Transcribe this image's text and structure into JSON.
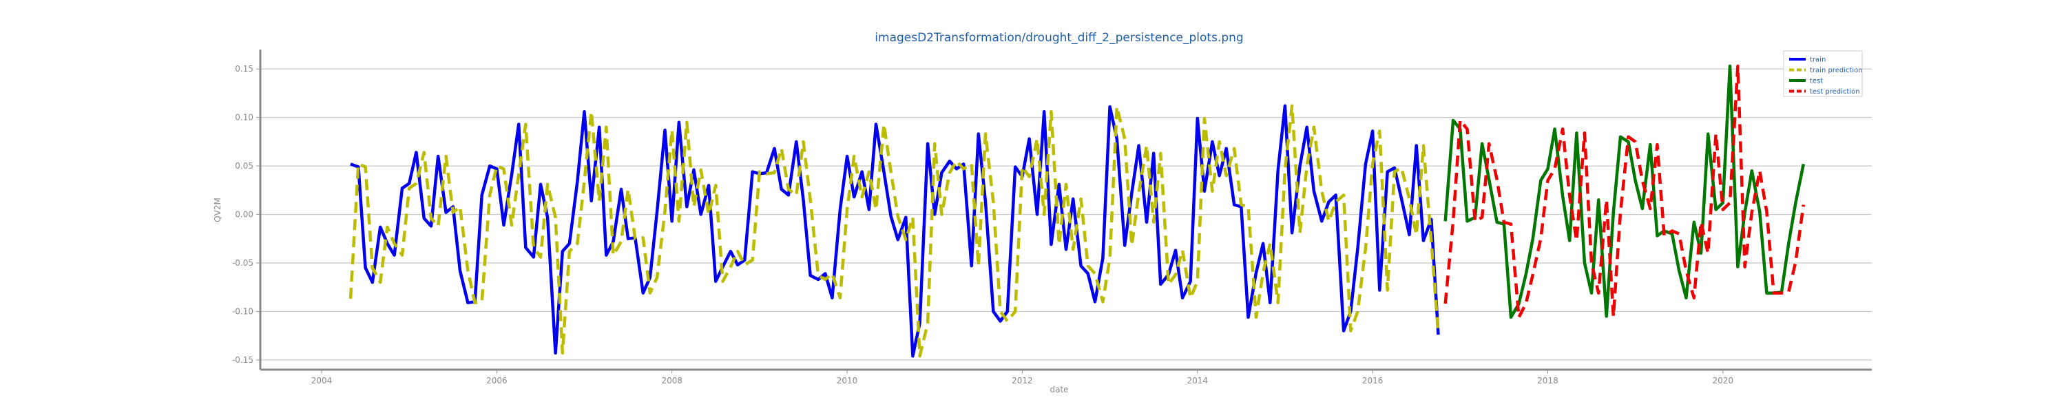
{
  "chart_data": {
    "type": "line",
    "title": "imagesD2Transformation/drought_diff_2_persistence_plots.png",
    "xlabel": "date",
    "ylabel": "QV2M",
    "xlim": [
      2003.3,
      2021.7
    ],
    "ylim": [
      -0.16,
      0.17
    ],
    "xticks": [
      "2004",
      "2006",
      "2008",
      "2010",
      "2012",
      "2014",
      "2016",
      "2018",
      "2020"
    ],
    "yticks": [
      "0.15",
      "0.10",
      "0.05",
      "0.00",
      "-0.05",
      "-0.10",
      "-0.15"
    ],
    "grid": "horizontal",
    "legend_position": "top-right",
    "series": [
      {
        "name": "train",
        "color": "#0000ee",
        "style": "solid",
        "x": [
          2004.33,
          2004.42,
          2004.5,
          2004.58,
          2004.67,
          2004.75,
          2004.83,
          2004.92,
          2005.0,
          2005.08,
          2005.17,
          2005.25,
          2005.33,
          2005.42,
          2005.5,
          2005.58,
          2005.67,
          2005.75,
          2005.83,
          2005.92,
          2006.0,
          2006.08,
          2006.17,
          2006.25,
          2006.33,
          2006.42,
          2006.5,
          2006.58,
          2006.67,
          2006.75,
          2006.83,
          2006.92,
          2007.0,
          2007.08,
          2007.17,
          2007.25,
          2007.33,
          2007.42,
          2007.5,
          2007.58,
          2007.67,
          2007.75,
          2007.83,
          2007.92,
          2008.0,
          2008.08,
          2008.17,
          2008.25,
          2008.33,
          2008.42,
          2008.5,
          2008.58,
          2008.67,
          2008.75,
          2008.83,
          2008.92,
          2009.0,
          2009.08,
          2009.17,
          2009.25,
          2009.33,
          2009.42,
          2009.5,
          2009.58,
          2009.67,
          2009.75,
          2009.83,
          2009.92,
          2010.0,
          2010.08,
          2010.17,
          2010.25,
          2010.33,
          2010.42,
          2010.5,
          2010.58,
          2010.67,
          2010.75,
          2010.83,
          2010.92,
          2011.0,
          2011.08,
          2011.17,
          2011.25,
          2011.33,
          2011.42,
          2011.5,
          2011.58,
          2011.67,
          2011.75,
          2011.83,
          2011.92,
          2012.0,
          2012.08,
          2012.17,
          2012.25,
          2012.33,
          2012.42,
          2012.5,
          2012.58,
          2012.67,
          2012.75,
          2012.83,
          2012.92,
          2013.0,
          2013.08,
          2013.17,
          2013.25,
          2013.33,
          2013.42,
          2013.5,
          2013.58,
          2013.67,
          2013.75,
          2013.83,
          2013.92,
          2014.0,
          2014.08,
          2014.17,
          2014.25,
          2014.33,
          2014.42,
          2014.5,
          2014.58,
          2014.67,
          2014.75,
          2014.83,
          2014.92,
          2015.0,
          2015.08,
          2015.17,
          2015.25,
          2015.33,
          2015.42,
          2015.5,
          2015.58,
          2015.67,
          2015.75,
          2015.83,
          2015.92,
          2016.0,
          2016.08,
          2016.17,
          2016.25,
          2016.33,
          2016.42,
          2016.5,
          2016.58,
          2016.67,
          2016.75
        ],
        "y": [
          0.052,
          0.049,
          -0.055,
          -0.07,
          -0.013,
          -0.03,
          -0.042,
          0.027,
          0.032,
          0.064,
          -0.004,
          -0.012,
          0.06,
          0.002,
          0.008,
          -0.058,
          -0.091,
          -0.09,
          0.02,
          0.05,
          0.047,
          -0.011,
          0.041,
          0.093,
          -0.034,
          -0.044,
          0.031,
          -0.003,
          -0.143,
          -0.038,
          -0.03,
          0.034,
          0.106,
          0.014,
          0.09,
          -0.042,
          -0.028,
          0.026,
          -0.025,
          -0.024,
          -0.081,
          -0.065,
          0.003,
          0.087,
          -0.007,
          0.095,
          0.008,
          0.046,
          0.0,
          0.03,
          -0.069,
          -0.054,
          -0.038,
          -0.052,
          -0.047,
          0.044,
          0.042,
          0.043,
          0.068,
          0.026,
          0.02,
          0.075,
          0.015,
          -0.063,
          -0.067,
          -0.061,
          -0.086,
          0.005,
          0.06,
          0.018,
          0.044,
          0.005,
          0.093,
          0.044,
          -0.002,
          -0.026,
          -0.003,
          -0.146,
          -0.112,
          0.073,
          0.0,
          0.043,
          0.055,
          0.047,
          0.052,
          -0.053,
          0.083,
          0.013,
          -0.1,
          -0.11,
          -0.1,
          0.049,
          0.039,
          0.078,
          0.0,
          0.106,
          -0.031,
          0.031,
          -0.036,
          0.016,
          -0.053,
          -0.061,
          -0.09,
          -0.045,
          0.111,
          0.078,
          -0.032,
          0.022,
          0.071,
          -0.008,
          0.063,
          -0.072,
          -0.062,
          -0.037,
          -0.086,
          -0.069,
          0.099,
          0.024,
          0.075,
          0.04,
          0.068,
          0.01,
          0.008,
          -0.106,
          -0.06,
          -0.03,
          -0.091,
          0.046,
          0.112,
          -0.019,
          0.05,
          0.09,
          0.024,
          -0.007,
          0.013,
          0.02,
          -0.12,
          -0.1,
          -0.035,
          0.052,
          0.086,
          -0.078,
          0.044,
          0.048,
          0.016,
          -0.021,
          0.071,
          -0.027,
          -0.005,
          -0.124
        ]
      },
      {
        "name": "train prediction",
        "color": "#bcbd00",
        "style": "dashed",
        "x": [
          2004.33,
          2004.42,
          2004.5,
          2004.58,
          2004.67,
          2004.75,
          2004.83,
          2004.92,
          2005.0,
          2005.08,
          2005.17,
          2005.25,
          2005.33,
          2005.42,
          2005.5,
          2005.58,
          2005.67,
          2005.75,
          2005.83,
          2005.92,
          2006.0,
          2006.08,
          2006.17,
          2006.25,
          2006.33,
          2006.42,
          2006.5,
          2006.58,
          2006.67,
          2006.75,
          2006.83,
          2006.92,
          2007.0,
          2007.08,
          2007.17,
          2007.25,
          2007.33,
          2007.42,
          2007.5,
          2007.58,
          2007.67,
          2007.75,
          2007.83,
          2007.92,
          2008.0,
          2008.08,
          2008.17,
          2008.25,
          2008.33,
          2008.42,
          2008.5,
          2008.58,
          2008.67,
          2008.75,
          2008.83,
          2008.92,
          2009.0,
          2009.08,
          2009.17,
          2009.25,
          2009.33,
          2009.42,
          2009.5,
          2009.58,
          2009.67,
          2009.75,
          2009.83,
          2009.92,
          2010.0,
          2010.08,
          2010.17,
          2010.25,
          2010.33,
          2010.42,
          2010.5,
          2010.58,
          2010.67,
          2010.75,
          2010.83,
          2010.92,
          2011.0,
          2011.08,
          2011.17,
          2011.25,
          2011.33,
          2011.42,
          2011.5,
          2011.58,
          2011.67,
          2011.75,
          2011.83,
          2011.92,
          2012.0,
          2012.08,
          2012.17,
          2012.25,
          2012.33,
          2012.42,
          2012.5,
          2012.58,
          2012.67,
          2012.75,
          2012.83,
          2012.92,
          2013.0,
          2013.08,
          2013.17,
          2013.25,
          2013.33,
          2013.42,
          2013.5,
          2013.58,
          2013.67,
          2013.75,
          2013.83,
          2013.92,
          2014.0,
          2014.08,
          2014.17,
          2014.25,
          2014.33,
          2014.42,
          2014.5,
          2014.58,
          2014.67,
          2014.75,
          2014.83,
          2014.92,
          2015.0,
          2015.08,
          2015.17,
          2015.25,
          2015.33,
          2015.42,
          2015.5,
          2015.58,
          2015.67,
          2015.75,
          2015.83,
          2015.92,
          2016.0,
          2016.08,
          2016.17,
          2016.25,
          2016.33,
          2016.42,
          2016.5,
          2016.58,
          2016.67,
          2016.75
        ],
        "y": [
          -0.087,
          0.052,
          0.049,
          -0.055,
          -0.07,
          -0.013,
          -0.03,
          -0.042,
          0.027,
          0.032,
          0.064,
          -0.004,
          -0.012,
          0.06,
          0.002,
          0.008,
          -0.058,
          -0.091,
          -0.09,
          0.02,
          0.05,
          0.047,
          -0.011,
          0.041,
          0.093,
          -0.034,
          -0.044,
          0.031,
          -0.003,
          -0.143,
          -0.038,
          -0.03,
          0.034,
          0.106,
          0.014,
          0.09,
          -0.042,
          -0.028,
          0.026,
          -0.025,
          -0.024,
          -0.081,
          -0.065,
          0.003,
          0.087,
          -0.007,
          0.095,
          0.008,
          0.046,
          0.0,
          0.03,
          -0.069,
          -0.054,
          -0.038,
          -0.052,
          -0.047,
          0.044,
          0.042,
          0.043,
          0.068,
          0.026,
          0.02,
          0.075,
          0.015,
          -0.063,
          -0.067,
          -0.061,
          -0.086,
          0.005,
          0.06,
          0.018,
          0.044,
          0.005,
          0.093,
          0.044,
          -0.002,
          -0.026,
          -0.003,
          -0.146,
          -0.112,
          0.073,
          0.0,
          0.043,
          0.055,
          0.047,
          0.052,
          -0.053,
          0.083,
          0.013,
          -0.1,
          -0.11,
          -0.1,
          0.049,
          0.039,
          0.078,
          0.0,
          0.106,
          -0.031,
          0.031,
          -0.036,
          0.016,
          -0.053,
          -0.061,
          -0.09,
          -0.045,
          0.111,
          0.078,
          -0.032,
          0.022,
          0.071,
          -0.008,
          0.063,
          -0.072,
          -0.062,
          -0.037,
          -0.086,
          -0.069,
          0.099,
          0.024,
          0.075,
          0.04,
          0.068,
          0.01,
          0.008,
          -0.106,
          -0.06,
          -0.03,
          -0.091,
          0.046,
          0.112,
          -0.019,
          0.05,
          0.09,
          0.024,
          -0.007,
          0.013,
          0.02,
          -0.12,
          -0.1,
          -0.035,
          0.052,
          0.086,
          -0.078,
          0.044,
          0.048,
          0.016,
          -0.021,
          0.071,
          -0.027,
          -0.123
        ]
      },
      {
        "name": "test",
        "color": "#007700",
        "style": "solid",
        "x": [
          2016.83,
          2016.92,
          2017.0,
          2017.08,
          2017.17,
          2017.25,
          2017.33,
          2017.42,
          2017.5,
          2017.58,
          2017.67,
          2017.75,
          2017.83,
          2017.92,
          2018.0,
          2018.08,
          2018.17,
          2018.25,
          2018.33,
          2018.42,
          2018.5,
          2018.58,
          2018.67,
          2018.75,
          2018.83,
          2018.92,
          2019.0,
          2019.08,
          2019.17,
          2019.25,
          2019.33,
          2019.42,
          2019.5,
          2019.58,
          2019.67,
          2019.75,
          2019.83,
          2019.92,
          2020.0,
          2020.08,
          2020.17,
          2020.25,
          2020.33,
          2020.42,
          2020.5,
          2020.58,
          2020.67,
          2020.75,
          2020.83,
          2020.92
        ],
        "y": [
          -0.007,
          0.097,
          0.088,
          -0.007,
          -0.003,
          0.073,
          0.036,
          -0.008,
          -0.01,
          -0.106,
          -0.092,
          -0.062,
          -0.025,
          0.035,
          0.047,
          0.088,
          0.019,
          -0.027,
          0.084,
          -0.05,
          -0.081,
          0.015,
          -0.105,
          0.002,
          0.08,
          0.075,
          0.035,
          0.006,
          0.072,
          -0.022,
          -0.017,
          -0.02,
          -0.058,
          -0.086,
          -0.008,
          -0.04,
          0.083,
          0.005,
          0.012,
          0.153,
          -0.054,
          0.002,
          0.045,
          0.003,
          -0.081,
          -0.081,
          -0.08,
          -0.03,
          0.012,
          0.052
        ]
      },
      {
        "name": "test prediction",
        "color": "#ee0000",
        "style": "dashed",
        "x": [
          2016.83,
          2016.92,
          2017.0,
          2017.08,
          2017.17,
          2017.25,
          2017.33,
          2017.42,
          2017.5,
          2017.58,
          2017.67,
          2017.75,
          2017.83,
          2017.92,
          2018.0,
          2018.08,
          2018.17,
          2018.25,
          2018.33,
          2018.42,
          2018.5,
          2018.58,
          2018.67,
          2018.75,
          2018.83,
          2018.92,
          2019.0,
          2019.08,
          2019.17,
          2019.25,
          2019.33,
          2019.42,
          2019.5,
          2019.58,
          2019.67,
          2019.75,
          2019.83,
          2019.92,
          2020.0,
          2020.08,
          2020.17,
          2020.25,
          2020.33,
          2020.42,
          2020.5,
          2020.58,
          2020.67,
          2020.75,
          2020.83,
          2020.92
        ],
        "y": [
          -0.092,
          -0.007,
          0.097,
          0.088,
          -0.007,
          -0.003,
          0.073,
          0.036,
          -0.008,
          -0.01,
          -0.106,
          -0.092,
          -0.062,
          -0.025,
          0.035,
          0.047,
          0.088,
          0.019,
          -0.027,
          0.084,
          -0.05,
          -0.081,
          0.015,
          -0.105,
          0.002,
          0.08,
          0.075,
          0.035,
          0.006,
          0.072,
          -0.022,
          -0.017,
          -0.02,
          -0.058,
          -0.086,
          -0.008,
          -0.04,
          0.083,
          0.005,
          0.012,
          0.153,
          -0.054,
          0.002,
          0.045,
          0.003,
          -0.081,
          -0.081,
          -0.08,
          -0.049,
          0.01
        ]
      }
    ]
  }
}
